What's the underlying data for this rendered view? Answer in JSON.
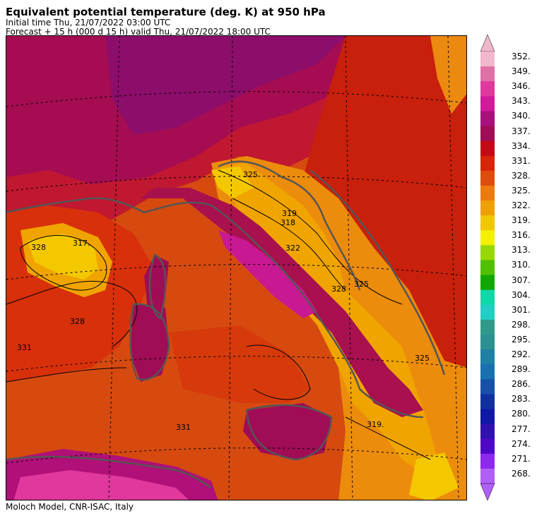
{
  "header": {
    "title": "Equivalent potential temperature (deg. K) at 950 hPa",
    "initial_time": "Initial time  Thu, 21/07/2022  03:00 UTC",
    "forecast": "Forecast  +  15 h  (000 d 15 h)  valid Thu, 21/07/2022  18:00 UTC"
  },
  "footer": {
    "credit": "Moloch Model, CNR-ISAC, Italy"
  },
  "map": {
    "contour_labels": [
      "317.",
      "328",
      "325",
      "319",
      "318",
      "322",
      "328",
      "331",
      "325",
      "319.",
      "325",
      "328",
      "331"
    ]
  },
  "colorbar": {
    "labels": [
      "352.",
      "349.",
      "346.",
      "343.",
      "340.",
      "337.",
      "334.",
      "331.",
      "328.",
      "325.",
      "322.",
      "319.",
      "316.",
      "313.",
      "310.",
      "307.",
      "304.",
      "301.",
      "298.",
      "295.",
      "292.",
      "289.",
      "286.",
      "283.",
      "280.",
      "277.",
      "274.",
      "271.",
      "268."
    ],
    "colors": [
      "#f0b8cc",
      "#e070a8",
      "#e0389c",
      "#d4189a",
      "#a8107c",
      "#a00c56",
      "#c40818",
      "#d82408",
      "#e04c0c",
      "#ec7a10",
      "#f0a000",
      "#f0c800",
      "#f4f000",
      "#98d800",
      "#50c000",
      "#10a800",
      "#10d8a8",
      "#20d0c4",
      "#309a8a",
      "#2a9090",
      "#1e80a4",
      "#1870b0",
      "#1650a8",
      "#1030a0",
      "#1018a8",
      "#3010b0",
      "#5008c8",
      "#8c28f0",
      "#b060f8"
    ],
    "top_arrow_color": "#f0b8cc",
    "bottom_arrow_color": "#b060f8"
  }
}
